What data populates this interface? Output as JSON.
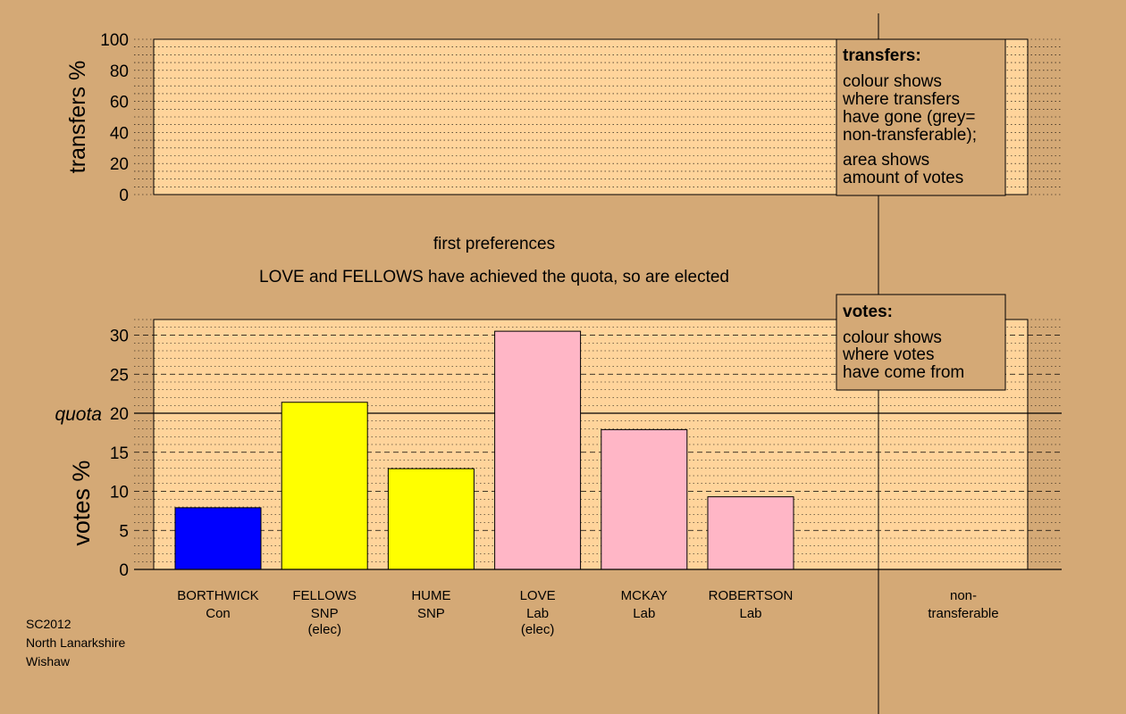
{
  "chart_data": [
    {
      "type": "bar",
      "panel": "transfers",
      "ylabel": "transfers %",
      "ylim": [
        0,
        100
      ],
      "yticks": [
        "0",
        "20",
        "40",
        "60",
        "80",
        "100"
      ],
      "grid": "dotted",
      "note": {
        "title": "transfers:",
        "lines": [
          "colour shows",
          "where transfers",
          "have gone (grey=",
          "non-transferable);",
          "area shows",
          "amount of votes"
        ]
      },
      "stage_label": "first preferences",
      "subtitle": "LOVE and FELLOWS have achieved the quota, so are elected"
    },
    {
      "type": "bar",
      "panel": "votes",
      "ylabel": "votes %",
      "ylim": [
        0,
        32
      ],
      "yticks": [
        "0",
        "5",
        "10",
        "15",
        "20",
        "25",
        "30"
      ],
      "grid": "dotted minor, dashed major",
      "quota": {
        "label": "quota",
        "value": 20
      },
      "categories": [
        {
          "name": "BORTHWICK",
          "party": "Con",
          "status": ""
        },
        {
          "name": "FELLOWS",
          "party": "SNP",
          "status": "(elec)"
        },
        {
          "name": "HUME",
          "party": "SNP",
          "status": ""
        },
        {
          "name": "LOVE",
          "party": "Lab",
          "status": "(elec)"
        },
        {
          "name": "MCKAY",
          "party": "Lab",
          "status": ""
        },
        {
          "name": "ROBERTSON",
          "party": "Lab",
          "status": ""
        }
      ],
      "values": [
        7.9,
        21.4,
        12.9,
        30.5,
        17.9,
        9.3
      ],
      "colors": [
        "#0000ff",
        "#ffff00",
        "#ffff00",
        "#ffb6c6",
        "#ffb6c6",
        "#ffb6c6"
      ],
      "nontransferable_label": [
        "non-",
        "transferable"
      ],
      "note": {
        "title": "votes:",
        "lines": [
          "colour shows",
          "where votes",
          "have come from"
        ]
      }
    }
  ],
  "footer": [
    "SC2012",
    "North Lanarkshire",
    "Wishaw"
  ],
  "colors": {
    "background": "#d4a976",
    "plot_area": "#ffd49b",
    "note_box": "#d4a976"
  }
}
